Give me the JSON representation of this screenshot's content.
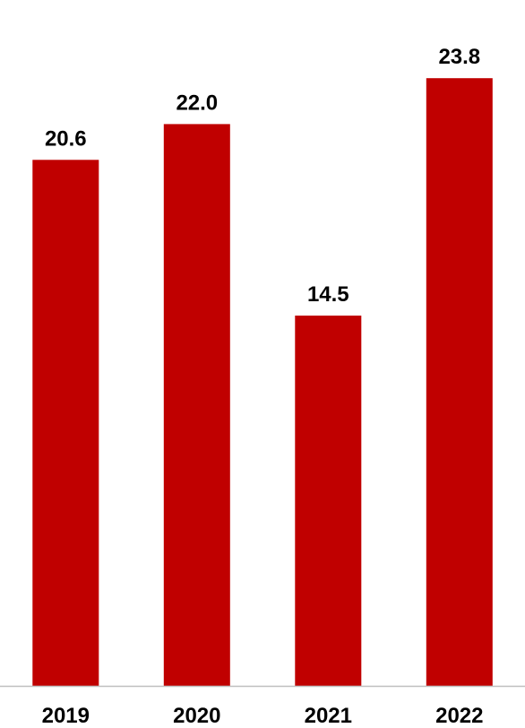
{
  "chart_data": {
    "type": "bar",
    "title": "",
    "xlabel": "",
    "ylabel": "",
    "categories": [
      "2019",
      "2020",
      "2021",
      "2022"
    ],
    "values": [
      20.6,
      22.0,
      14.5,
      23.8
    ],
    "value_labels": [
      "20.6",
      "22.0",
      "14.5",
      "23.8"
    ],
    "ylim": [
      0,
      25
    ],
    "grid": false,
    "legend": "none",
    "colors": {
      "bar": "#C00000",
      "axis": "#BFBFBF",
      "text": "#000000"
    }
  }
}
